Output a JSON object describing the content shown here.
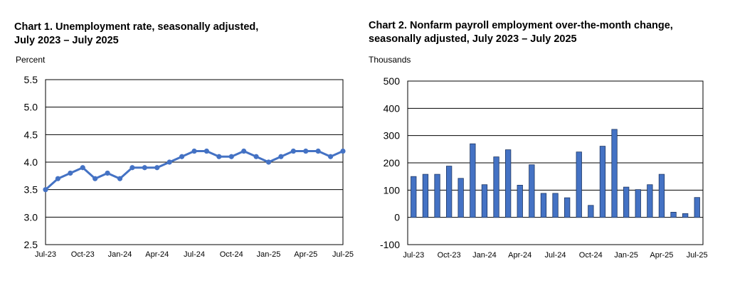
{
  "chart_data": [
    {
      "type": "line",
      "title_line1": "Chart 1. Unemployment rate, seasonally adjusted,",
      "title_line2": "July 2023 – July 2025",
      "ylabel": "Percent",
      "xlabel": "",
      "ylim": [
        2.5,
        5.5
      ],
      "yticks": [
        "5.5",
        "5.0",
        "4.5",
        "4.0",
        "3.5",
        "3.0",
        "2.5"
      ],
      "ytick_values": [
        5.5,
        5.0,
        4.5,
        4.0,
        3.5,
        3.0,
        2.5
      ],
      "xtick_labels": [
        "Jul-23",
        "Oct-23",
        "Jan-24",
        "Apr-24",
        "Jul-24",
        "Oct-24",
        "Jan-25",
        "Apr-25",
        "Jul-25"
      ],
      "xtick_indices": [
        0,
        3,
        6,
        9,
        12,
        15,
        18,
        21,
        24
      ],
      "grid": true,
      "series": [
        {
          "name": "Unemployment rate",
          "color": "#4472C4",
          "values": [
            3.5,
            3.7,
            3.8,
            3.9,
            3.7,
            3.8,
            3.7,
            3.9,
            3.9,
            3.9,
            4.0,
            4.1,
            4.2,
            4.2,
            4.1,
            4.1,
            4.2,
            4.1,
            4.0,
            4.1,
            4.2,
            4.2,
            4.2,
            4.1,
            4.2
          ]
        }
      ]
    },
    {
      "type": "bar",
      "title_line1": "Chart 2. Nonfarm payroll employment over-the-month change,",
      "title_line2": "seasonally adjusted, July 2023 – July 2025",
      "ylabel": "Thousands",
      "xlabel": "",
      "ylim": [
        -100,
        500
      ],
      "yticks": [
        "500",
        "400",
        "300",
        "200",
        "100",
        "0",
        "-100"
      ],
      "ytick_values": [
        500,
        400,
        300,
        200,
        100,
        0,
        -100
      ],
      "xtick_labels": [
        "Jul-23",
        "Oct-23",
        "Jan-24",
        "Apr-24",
        "Jul-24",
        "Oct-24",
        "Jan-25",
        "Apr-25",
        "Jul-25"
      ],
      "xtick_indices": [
        0,
        3,
        6,
        9,
        12,
        15,
        18,
        21,
        24
      ],
      "grid": true,
      "series": [
        {
          "name": "Over-the-month change",
          "color": "#4472C4",
          "values": [
            150,
            158,
            158,
            188,
            143,
            270,
            120,
            222,
            248,
            118,
            193,
            88,
            88,
            72,
            240,
            44,
            261,
            323,
            111,
            102,
            120,
            158,
            19,
            14,
            73
          ]
        }
      ]
    }
  ]
}
